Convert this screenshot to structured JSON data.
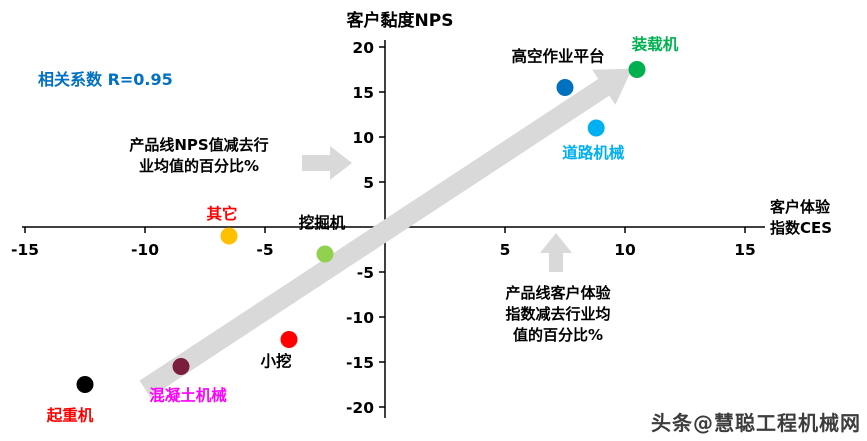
{
  "page": {
    "watermark": "头条@慧聪工程机械网"
  },
  "chart_data": {
    "type": "scatter",
    "title": "",
    "ylabel": "客户黏度NPS",
    "xlabel": "客户体验指数CES",
    "xlabel_display": "客户体验\n指数CES",
    "correlation_label": "相关系数 R=0.95",
    "xlim": [
      -15,
      15
    ],
    "ylim": [
      -20,
      20
    ],
    "x_ticks": [
      -15,
      -10,
      -5,
      5,
      10,
      15
    ],
    "y_ticks": [
      20,
      15,
      10,
      5,
      -5,
      -10,
      -15,
      -20
    ],
    "grid": false,
    "annotations": [
      {
        "text": "产品线NPS值减去行\n业均值的百分比%",
        "arrow": "right"
      },
      {
        "text": "产品线客户体验\n指数减去行业均\n值的百分比%",
        "arrow": "up"
      }
    ],
    "points": [
      {
        "name": "起重机",
        "x": -12.5,
        "y": -17.5,
        "dot_color": "#000000",
        "label_color": "#FF0000",
        "label_offset": [
          -15,
          36
        ]
      },
      {
        "name": "混凝土机械",
        "x": -8.5,
        "y": -15.5,
        "dot_color": "#7B1E3E",
        "label_color": "#FF00FF",
        "label_offset": [
          7,
          34
        ]
      },
      {
        "name": "小挖",
        "x": -4,
        "y": -12.5,
        "dot_color": "#FF0000",
        "label_color": "#000000",
        "label_offset": [
          -13,
          27
        ]
      },
      {
        "name": "其它",
        "x": -6.5,
        "y": -1,
        "dot_color": "#FFC000",
        "label_color": "#FF0000",
        "label_offset": [
          -7,
          -17
        ]
      },
      {
        "name": "挖掘机",
        "x": -2.5,
        "y": -3,
        "dot_color": "#92D050",
        "label_color": "#000000",
        "label_offset": [
          -3,
          -26
        ]
      },
      {
        "name": "高空作业平台",
        "x": 7.5,
        "y": 15.5,
        "dot_color": "#0070C0",
        "label_color": "#000000",
        "label_offset": [
          -7,
          -26
        ]
      },
      {
        "name": "道路机械",
        "x": 8.8,
        "y": 11,
        "dot_color": "#00B0F0",
        "label_color": "#00B0F0",
        "label_offset": [
          -3,
          30
        ]
      },
      {
        "name": "装载机",
        "x": 10.5,
        "y": 17.5,
        "dot_color": "#00B050",
        "label_color": "#00B050",
        "label_offset": [
          18,
          -20
        ]
      }
    ],
    "trend_arrow": {
      "from": [
        -10,
        -18
      ],
      "to": [
        10.3,
        17.6
      ],
      "color": "#D9D9D9"
    },
    "colors": {
      "axis": "#000000",
      "arrow_gray": "#D9D9D9",
      "correlation": "#0070C0"
    }
  }
}
